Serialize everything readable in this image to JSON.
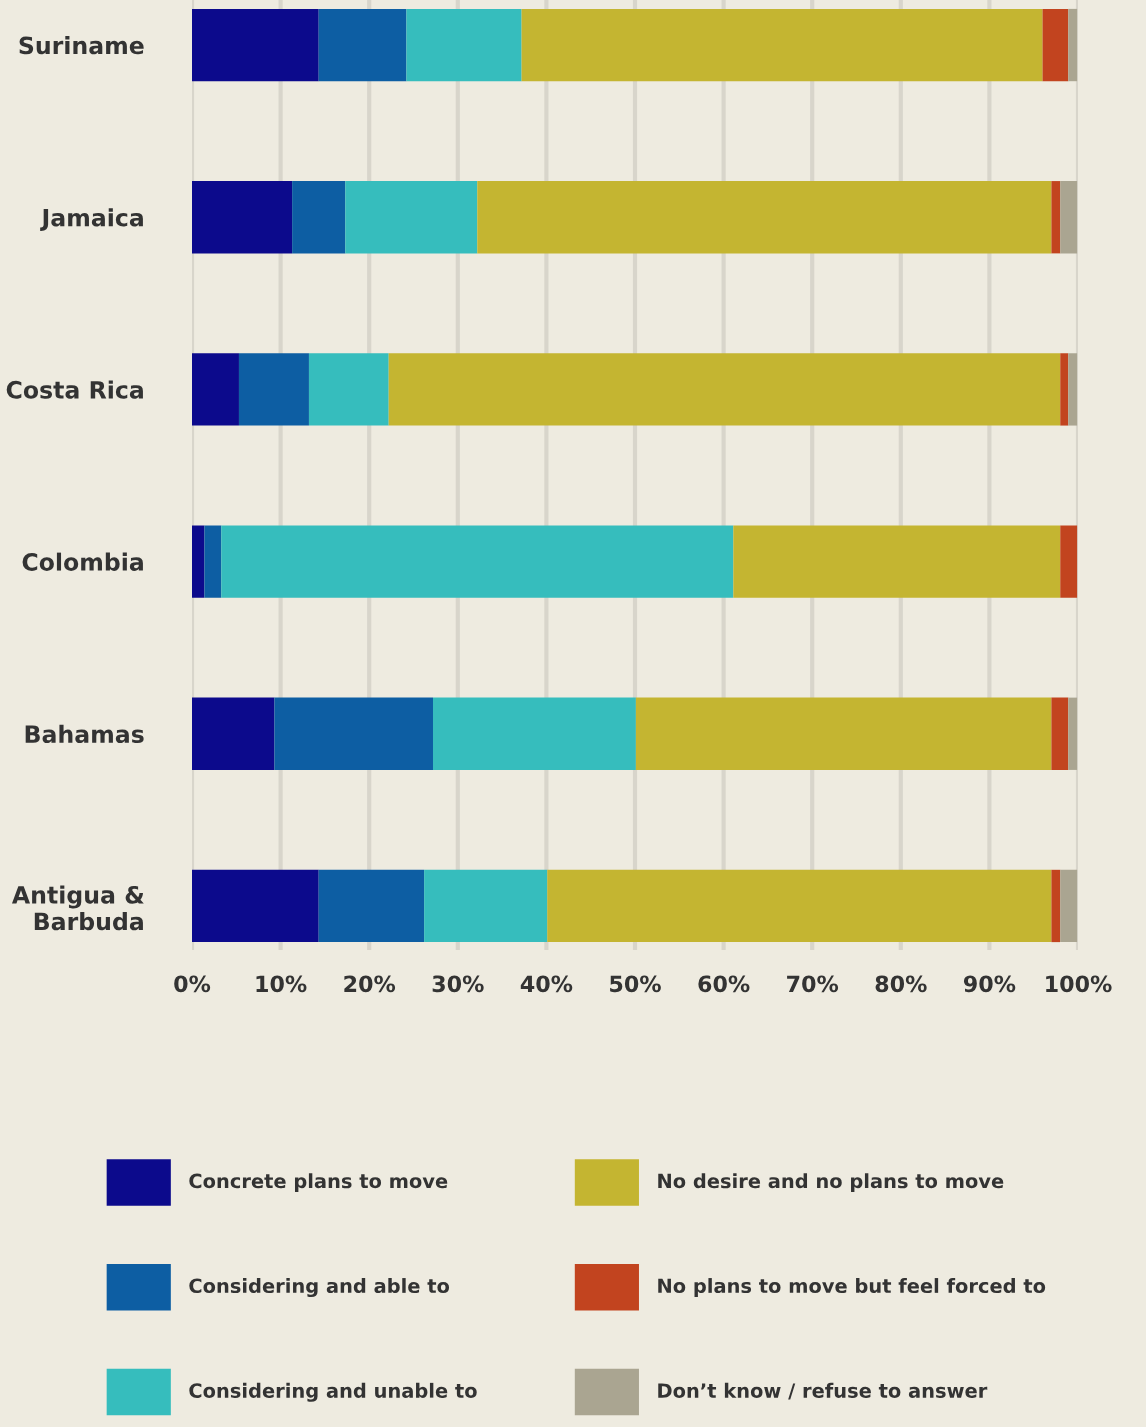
{
  "chart_data": {
    "type": "bar",
    "orientation": "horizontal",
    "stacked": true,
    "categories": [
      "Suriname",
      "Jamaica",
      "Costa Rica",
      "Colombia",
      "Bahamas",
      "Antigua &\nBarbuda"
    ],
    "series": [
      {
        "name": "Concrete plans to move",
        "color": "#0c0a8c",
        "values": [
          14.3,
          11.3,
          5.3,
          1.4,
          9.3,
          14.3
        ]
      },
      {
        "name": "Considering and able to",
        "color": "#0d5ea3",
        "values": [
          9.9,
          6.0,
          7.9,
          1.9,
          17.9,
          11.9
        ]
      },
      {
        "name": "Considering and unable to",
        "color": "#36bdbd",
        "values": [
          13.0,
          14.9,
          9.0,
          57.8,
          22.9,
          13.9
        ]
      },
      {
        "name": "No desire and no plans to move",
        "color": "#c4b531",
        "values": [
          58.8,
          64.8,
          75.8,
          36.9,
          46.9,
          56.9
        ]
      },
      {
        "name": "No plans to move but feel forced to",
        "color": "#c2441f",
        "values": [
          2.9,
          1.0,
          0.9,
          1.9,
          1.9,
          1.0
        ]
      },
      {
        "name": "Don’t know / refuse to answer",
        "color": "#aaa591",
        "values": [
          1.0,
          1.9,
          1.0,
          0,
          1.0,
          1.9
        ]
      }
    ],
    "xlim": [
      0,
      100
    ],
    "xticks": [
      {
        "value": 0,
        "label": "0%"
      },
      {
        "value": 10,
        "label": "10%"
      },
      {
        "value": 20,
        "label": "20%"
      },
      {
        "value": 30,
        "label": "30%"
      },
      {
        "value": 40,
        "label": "40%"
      },
      {
        "value": 50,
        "label": "50%"
      },
      {
        "value": 60,
        "label": "60%"
      },
      {
        "value": 70,
        "label": "70%"
      },
      {
        "value": 80,
        "label": "80%"
      },
      {
        "value": 90,
        "label": "90%"
      },
      {
        "value": 100,
        "label": "100%"
      }
    ],
    "grid": "x",
    "legend": "bottom"
  }
}
